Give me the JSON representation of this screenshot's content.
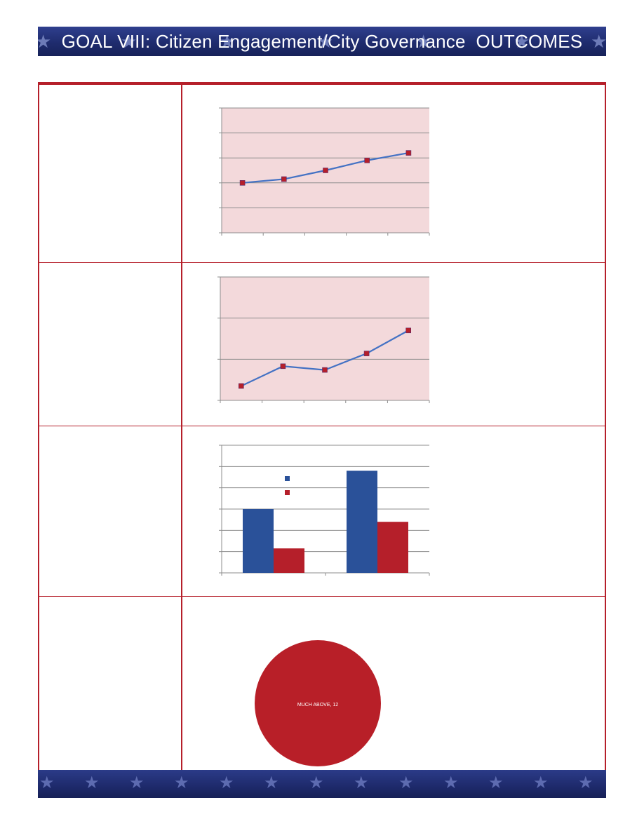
{
  "header": {
    "title": "GOAL VIII: Citizen Engagement/City Governance  OUTCOMES"
  },
  "colors": {
    "banner": "#1f2c6e",
    "rule": "#b51f2a",
    "plot_bg": "#f3d9db",
    "line": "#4472c4",
    "marker": "#b51f2a",
    "bar_blue": "#2a5199",
    "bar_red": "#b51f2a",
    "pie_red": "#b81f28"
  },
  "chart_data": [
    {
      "type": "line",
      "x": [
        1,
        2,
        3,
        4,
        5
      ],
      "series": [
        {
          "values": [
            2.0,
            2.15,
            2.5,
            2.9,
            3.2
          ]
        }
      ],
      "ylim": [
        0,
        5
      ],
      "grid": true
    },
    {
      "type": "line",
      "x": [
        1,
        2,
        3,
        4,
        5
      ],
      "series": [
        {
          "values": [
            0.35,
            0.83,
            0.74,
            1.14,
            1.7
          ]
        }
      ],
      "ylim": [
        0,
        3
      ],
      "grid": true
    },
    {
      "type": "bar",
      "categories": [
        "",
        ""
      ],
      "series": [
        {
          "values": [
            3.0,
            4.8
          ]
        },
        {
          "values": [
            1.15,
            2.4
          ]
        }
      ],
      "ylim": [
        0,
        6
      ],
      "legend": "top-left",
      "grid": true
    },
    {
      "type": "pie",
      "labels": [
        "MUCH ABOVE"
      ],
      "values": [
        12
      ],
      "data_labels": [
        "MUCH ABOVE, 12"
      ]
    }
  ]
}
